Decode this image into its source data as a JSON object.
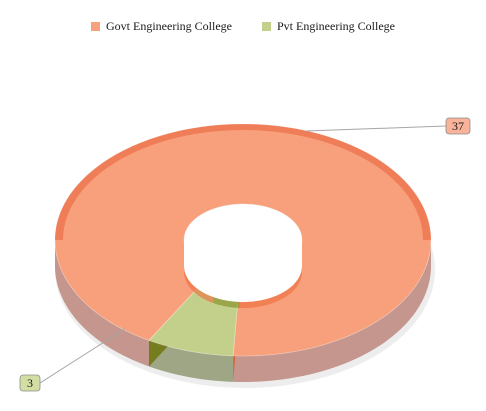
{
  "chart_data": {
    "type": "pie",
    "style": "3d-donut",
    "title": "",
    "categories": [
      "Govt Engineering College",
      "Pvt Engineering College"
    ],
    "values": [
      37,
      3
    ],
    "colors": {
      "Govt Engineering College": "#f8a07c",
      "Pvt Engineering College": "#c3d08b"
    },
    "legend": {
      "position": "top",
      "items": [
        {
          "label": "Govt Engineering College",
          "color": "#f8a07c"
        },
        {
          "label": "Pvt Engineering College",
          "color": "#c3d08b"
        }
      ]
    },
    "data_labels": [
      "37",
      "3"
    ]
  }
}
